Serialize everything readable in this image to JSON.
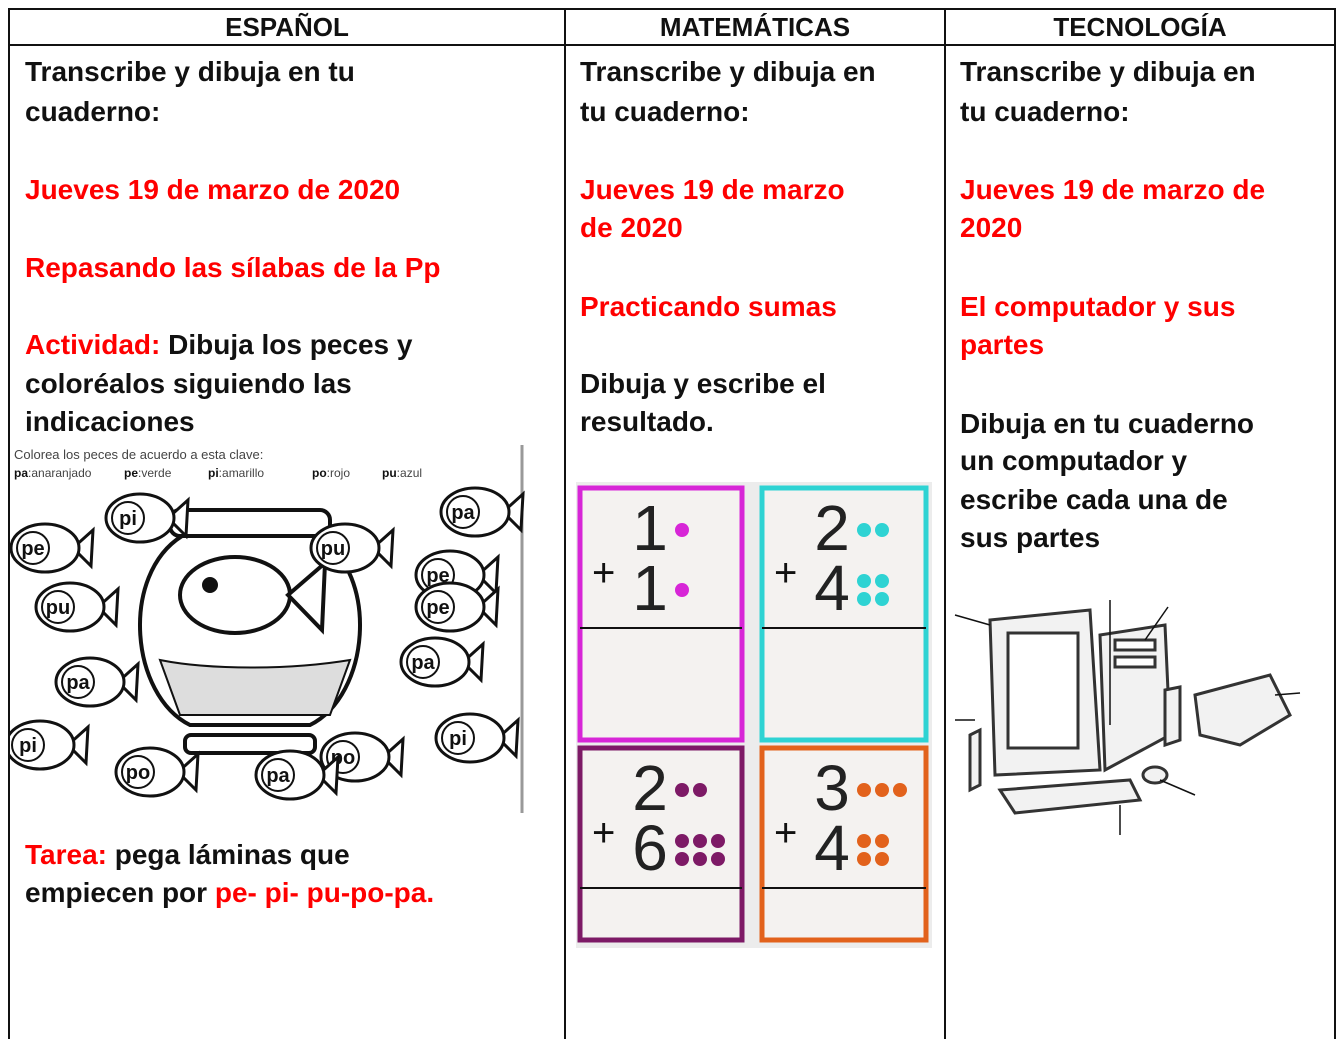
{
  "header": [
    "ESPAÑOL",
    "MATEMÁTICAS",
    "TECNOLOGÍA"
  ],
  "spanish": {
    "instruction": [
      "Transcribe y dibuja en tu",
      "cuaderno:"
    ],
    "date": [
      "Jueves 19 de marzo de 2020"
    ],
    "topic": [
      "Repasando las sílabas de la Pp"
    ],
    "activity": {
      "label": "Actividad:",
      "lines": [
        "Dibuja los peces y",
        "coloréalos siguiendo las",
        "indicaciones"
      ]
    },
    "worksheet": {
      "instruction": "Colorea los peces de acuerdo a esta clave:",
      "key": [
        {
          "syllable": "pa",
          "color": "anaranjado"
        },
        {
          "syllable": "pe",
          "color": "verde"
        },
        {
          "syllable": "pi",
          "color": "amarillo"
        },
        {
          "syllable": "po",
          "color": "rojo"
        },
        {
          "syllable": "pu",
          "color": "azul"
        }
      ],
      "fish": [
        "pi",
        "pa",
        "pe",
        "pu",
        "pe",
        "pu",
        "pe",
        "pa",
        "pa",
        "pi",
        "po",
        "pi",
        "po",
        "pa"
      ]
    },
    "homework": {
      "label": "Tarea:",
      "lines": [
        "pega láminas que",
        "empiecen por"
      ],
      "syllables": "pe- pi- pu-po-pa."
    }
  },
  "math": {
    "instruction": [
      "Transcribe y dibuja en",
      "tu cuaderno:"
    ],
    "date": [
      "Jueves 19 de marzo",
      "de 2020"
    ],
    "topic": [
      "Practicando sumas"
    ],
    "task": [
      "Dibuja y escribe el",
      "resultado."
    ],
    "operator": "+",
    "cards": [
      {
        "top": 1,
        "bottom": 1,
        "color": "#d726d7"
      },
      {
        "top": 2,
        "bottom": 4,
        "color": "#2ed3d3"
      },
      {
        "top": 2,
        "bottom": 6,
        "color": "#7d1a66"
      },
      {
        "top": 3,
        "bottom": 4,
        "color": "#e2621c"
      }
    ]
  },
  "technology": {
    "instruction": [
      "Transcribe y dibuja en",
      "tu cuaderno:"
    ],
    "date": [
      "Jueves 19 de marzo de",
      "2020"
    ],
    "topic": [
      "El computador y sus",
      "partes"
    ],
    "task": [
      "Dibuja en tu cuaderno",
      "un computador y",
      "escribe cada una de",
      "sus partes"
    ]
  }
}
